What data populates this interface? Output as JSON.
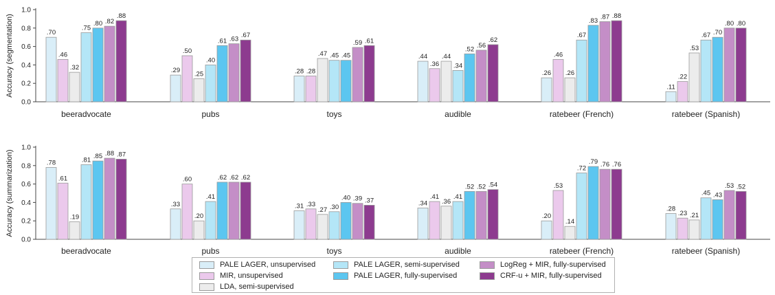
{
  "colors": {
    "PALE LAGER, unsupervised": "#d9eef8",
    "MIR, unsupervised": "#ebc9ec",
    "LDA, semi-supervised": "#ececec",
    "PALE LAGER, semi-supervised": "#b4e6f7",
    "PALE LAGER, fully-supervised": "#5cc6f0",
    "LogReg + MIR, fully-supervised": "#c48ec7",
    "CRF-u + MIR, fully-supervised": "#8d3b8f"
  },
  "chart_data": [
    {
      "type": "bar",
      "ylabel": "Accuracy (segmentation)",
      "ylim": [
        0,
        1.0
      ],
      "yticks": [
        "0.0",
        "0.2",
        "0.4",
        "0.6",
        "0.8",
        "1.0"
      ],
      "categories": [
        "beeradvocate",
        "pubs",
        "toys",
        "audible",
        "ratebeer (French)",
        "ratebeer (Spanish)"
      ],
      "series": [
        {
          "name": "PALE LAGER, unsupervised",
          "values": [
            0.7,
            0.29,
            0.28,
            0.44,
            0.26,
            0.11
          ],
          "labels": [
            ".70",
            ".29",
            ".28",
            ".44",
            ".26",
            ".11"
          ]
        },
        {
          "name": "MIR, unsupervised",
          "values": [
            0.46,
            0.5,
            0.28,
            0.36,
            0.46,
            0.22
          ],
          "labels": [
            ".46",
            ".50",
            ".28",
            ".36",
            ".46",
            ".22"
          ]
        },
        {
          "name": "LDA, semi-supervised",
          "values": [
            0.32,
            0.25,
            0.47,
            0.44,
            0.26,
            0.53
          ],
          "labels": [
            ".32",
            ".25",
            ".47",
            ".44",
            ".26",
            ".53"
          ]
        },
        {
          "name": "PALE LAGER, semi-supervised",
          "values": [
            0.75,
            0.4,
            0.45,
            0.34,
            0.67,
            0.67
          ],
          "labels": [
            ".75",
            ".40",
            ".45",
            ".34",
            ".67",
            ".67"
          ]
        },
        {
          "name": "PALE LAGER, fully-supervised",
          "values": [
            0.8,
            0.61,
            0.45,
            0.52,
            0.83,
            0.7
          ],
          "labels": [
            ".80",
            ".61",
            ".45",
            ".52",
            ".83",
            ".70"
          ]
        },
        {
          "name": "LogReg + MIR, fully-supervised",
          "values": [
            0.82,
            0.63,
            0.59,
            0.56,
            0.87,
            0.8
          ],
          "labels": [
            ".82",
            ".63",
            ".59",
            ".56",
            ".87",
            ".80"
          ]
        },
        {
          "name": "CRF-u + MIR, fully-supervised",
          "values": [
            0.88,
            0.67,
            0.61,
            0.62,
            0.88,
            0.8
          ],
          "labels": [
            ".88",
            ".67",
            ".61",
            ".62",
            ".88",
            ".80"
          ]
        }
      ]
    },
    {
      "type": "bar",
      "ylabel": "Accuracy (summarization)",
      "ylim": [
        0,
        1.0
      ],
      "yticks": [
        "0.0",
        "0.2",
        "0.4",
        "0.6",
        "0.8",
        "1.0"
      ],
      "categories": [
        "beeradvocate",
        "pubs",
        "toys",
        "audible",
        "ratebeer (French)",
        "ratebeer (Spanish)"
      ],
      "series": [
        {
          "name": "PALE LAGER, unsupervised",
          "values": [
            0.78,
            0.33,
            0.31,
            0.34,
            0.2,
            0.28
          ],
          "labels": [
            ".78",
            ".33",
            ".31",
            ".34",
            ".20",
            ".28"
          ]
        },
        {
          "name": "MIR, unsupervised",
          "values": [
            0.61,
            0.6,
            0.33,
            0.41,
            0.53,
            0.23
          ],
          "labels": [
            ".61",
            ".60",
            ".33",
            ".41",
            ".53",
            ".23"
          ]
        },
        {
          "name": "LDA, semi-supervised",
          "values": [
            0.19,
            0.2,
            0.27,
            0.36,
            0.14,
            0.21
          ],
          "labels": [
            ".19",
            ".20",
            ".27",
            ".36",
            ".14",
            ".21"
          ]
        },
        {
          "name": "PALE LAGER, semi-supervised",
          "values": [
            0.81,
            0.41,
            0.3,
            0.41,
            0.72,
            0.45
          ],
          "labels": [
            ".81",
            ".41",
            ".30",
            ".41",
            ".72",
            ".45"
          ]
        },
        {
          "name": "PALE LAGER, fully-supervised",
          "values": [
            0.85,
            0.62,
            0.4,
            0.52,
            0.79,
            0.43
          ],
          "labels": [
            ".85",
            ".62",
            ".40",
            ".52",
            ".79",
            ".43"
          ]
        },
        {
          "name": "LogReg + MIR, fully-supervised",
          "values": [
            0.88,
            0.62,
            0.39,
            0.52,
            0.76,
            0.53
          ],
          "labels": [
            ".88",
            ".62",
            ".39",
            ".52",
            ".76",
            ".53"
          ]
        },
        {
          "name": "CRF-u + MIR, fully-supervised",
          "values": [
            0.87,
            0.62,
            0.37,
            0.54,
            0.76,
            0.52
          ],
          "labels": [
            ".87",
            ".62",
            ".37",
            ".54",
            ".76",
            ".52"
          ]
        }
      ]
    }
  ],
  "legend": {
    "order": [
      "PALE LAGER, unsupervised",
      "MIR, unsupervised",
      "LDA, semi-supervised",
      "PALE LAGER, semi-supervised",
      "PALE LAGER, fully-supervised",
      "LogReg + MIR, fully-supervised",
      "CRF-u + MIR, fully-supervised"
    ]
  }
}
